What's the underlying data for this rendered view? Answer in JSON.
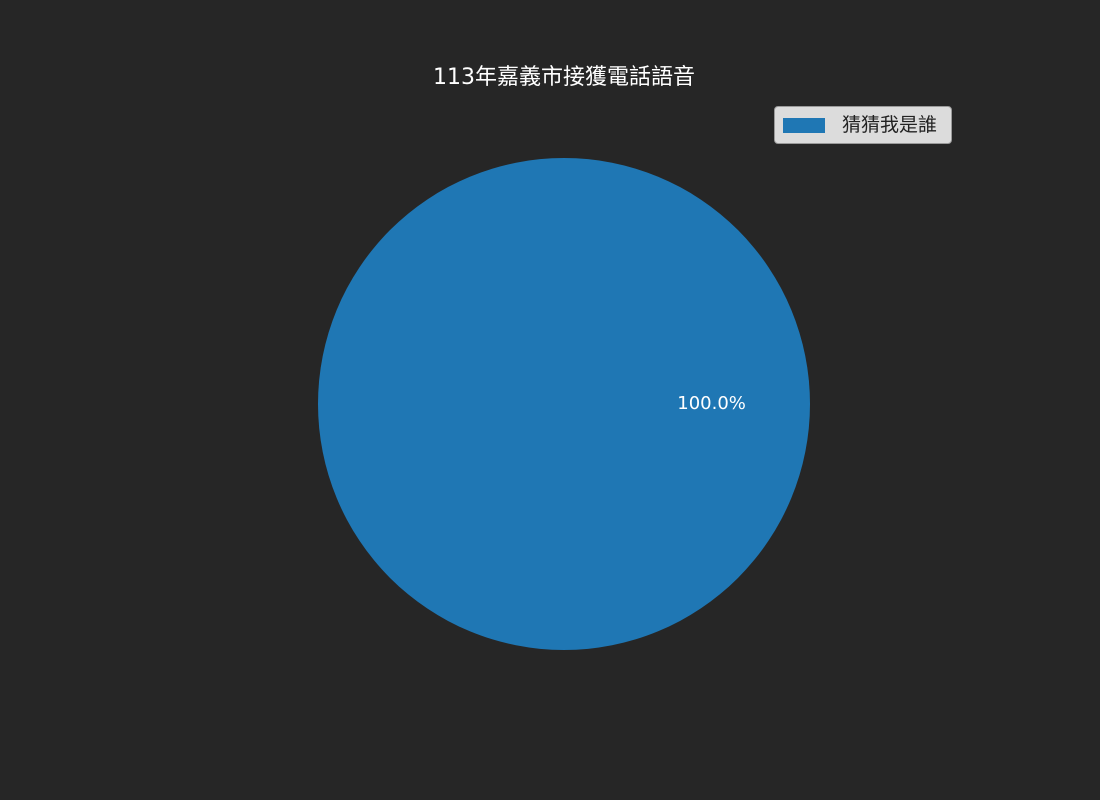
{
  "chart_data": {
    "type": "pie",
    "title": "113年嘉義市接獲電話語音",
    "categories": [
      "猜猜我是誰"
    ],
    "values": [
      100.0
    ],
    "colors": [
      "#1f77b4"
    ],
    "slice_labels": [
      "100.0%"
    ],
    "legend": {
      "placement": "top-right",
      "entries": [
        "猜猜我是誰"
      ]
    },
    "background_color": "#262626"
  }
}
